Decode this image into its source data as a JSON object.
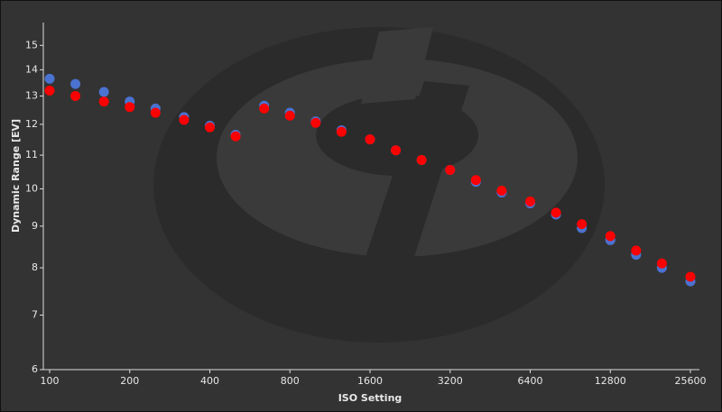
{
  "chart_data": {
    "type": "scatter",
    "x_label": "ISO Setting",
    "y_label": "Dynamic Range [EV]",
    "x": [
      100,
      125,
      160,
      200,
      250,
      320,
      400,
      500,
      640,
      800,
      1000,
      1250,
      1600,
      2000,
      2500,
      3200,
      4000,
      5000,
      6400,
      8000,
      10000,
      12800,
      16000,
      20000,
      25600
    ],
    "series": [
      {
        "color": "#4a72d0",
        "values": [
          13.65,
          13.45,
          13.15,
          12.8,
          12.55,
          12.25,
          11.95,
          11.65,
          12.65,
          12.4,
          12.1,
          11.8,
          11.5,
          11.15,
          10.85,
          10.55,
          10.2,
          9.9,
          9.6,
          9.3,
          8.95,
          8.65,
          8.3,
          8.0,
          7.7
        ]
      },
      {
        "color": "#ff0000",
        "values": [
          13.2,
          13.0,
          12.8,
          12.6,
          12.4,
          12.15,
          11.9,
          11.6,
          12.55,
          12.3,
          12.05,
          11.75,
          11.5,
          11.15,
          10.85,
          10.55,
          10.25,
          9.95,
          9.65,
          9.35,
          9.05,
          8.75,
          8.4,
          8.1,
          7.8
        ]
      }
    ],
    "xscale": "log",
    "yscale": "log",
    "xlim": [
      100,
      25600
    ],
    "xticks": [
      100,
      200,
      400,
      800,
      1600,
      3200,
      6400,
      12800,
      25600
    ],
    "ylim": [
      6,
      16
    ],
    "yticks": [
      6,
      7,
      8,
      9,
      10,
      11,
      12,
      13,
      14,
      15
    ]
  }
}
